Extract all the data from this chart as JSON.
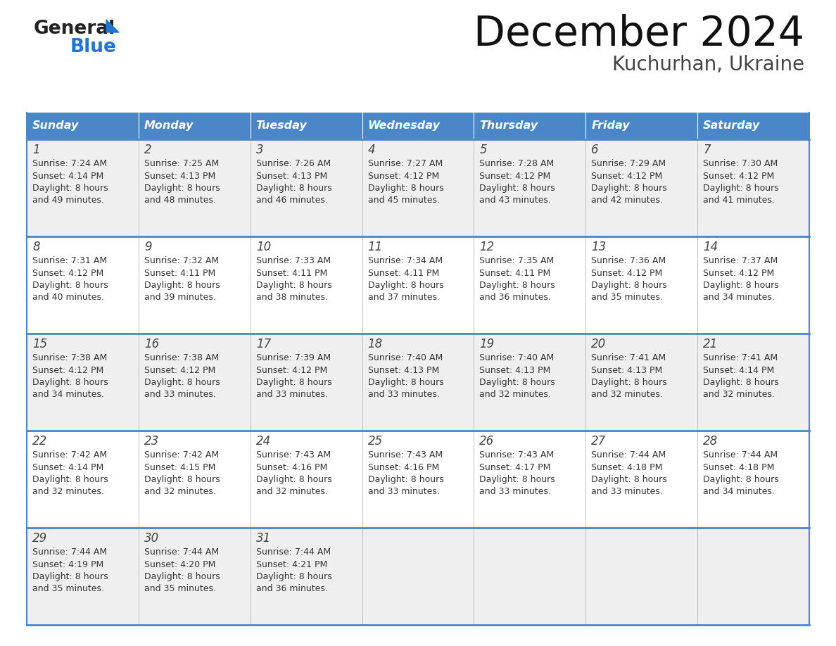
{
  "title": "December 2024",
  "subtitle": "Kuchurhan, Ukraine",
  "days_header": [
    "Sunday",
    "Monday",
    "Tuesday",
    "Wednesday",
    "Thursday",
    "Friday",
    "Saturday"
  ],
  "header_bg": "#4a86c8",
  "header_text_color": "#FFFFFF",
  "cell_bg_odd": "#EFEFEF",
  "cell_bg_even": "#FFFFFF",
  "cell_text_color": "#333333",
  "day_number_color": "#444444",
  "border_color": "#4a86c8",
  "grid_color": "#aaaaaa",
  "weeks": [
    [
      {
        "day": 1,
        "sunrise": "7:24 AM",
        "sunset": "4:14 PM",
        "daylight": "8 hours",
        "daylight2": "and 49 minutes."
      },
      {
        "day": 2,
        "sunrise": "7:25 AM",
        "sunset": "4:13 PM",
        "daylight": "8 hours",
        "daylight2": "and 48 minutes."
      },
      {
        "day": 3,
        "sunrise": "7:26 AM",
        "sunset": "4:13 PM",
        "daylight": "8 hours",
        "daylight2": "and 46 minutes."
      },
      {
        "day": 4,
        "sunrise": "7:27 AM",
        "sunset": "4:12 PM",
        "daylight": "8 hours",
        "daylight2": "and 45 minutes."
      },
      {
        "day": 5,
        "sunrise": "7:28 AM",
        "sunset": "4:12 PM",
        "daylight": "8 hours",
        "daylight2": "and 43 minutes."
      },
      {
        "day": 6,
        "sunrise": "7:29 AM",
        "sunset": "4:12 PM",
        "daylight": "8 hours",
        "daylight2": "and 42 minutes."
      },
      {
        "day": 7,
        "sunrise": "7:30 AM",
        "sunset": "4:12 PM",
        "daylight": "8 hours",
        "daylight2": "and 41 minutes."
      }
    ],
    [
      {
        "day": 8,
        "sunrise": "7:31 AM",
        "sunset": "4:12 PM",
        "daylight": "8 hours",
        "daylight2": "and 40 minutes."
      },
      {
        "day": 9,
        "sunrise": "7:32 AM",
        "sunset": "4:11 PM",
        "daylight": "8 hours",
        "daylight2": "and 39 minutes."
      },
      {
        "day": 10,
        "sunrise": "7:33 AM",
        "sunset": "4:11 PM",
        "daylight": "8 hours",
        "daylight2": "and 38 minutes."
      },
      {
        "day": 11,
        "sunrise": "7:34 AM",
        "sunset": "4:11 PM",
        "daylight": "8 hours",
        "daylight2": "and 37 minutes."
      },
      {
        "day": 12,
        "sunrise": "7:35 AM",
        "sunset": "4:11 PM",
        "daylight": "8 hours",
        "daylight2": "and 36 minutes."
      },
      {
        "day": 13,
        "sunrise": "7:36 AM",
        "sunset": "4:12 PM",
        "daylight": "8 hours",
        "daylight2": "and 35 minutes."
      },
      {
        "day": 14,
        "sunrise": "7:37 AM",
        "sunset": "4:12 PM",
        "daylight": "8 hours",
        "daylight2": "and 34 minutes."
      }
    ],
    [
      {
        "day": 15,
        "sunrise": "7:38 AM",
        "sunset": "4:12 PM",
        "daylight": "8 hours",
        "daylight2": "and 34 minutes."
      },
      {
        "day": 16,
        "sunrise": "7:38 AM",
        "sunset": "4:12 PM",
        "daylight": "8 hours",
        "daylight2": "and 33 minutes."
      },
      {
        "day": 17,
        "sunrise": "7:39 AM",
        "sunset": "4:12 PM",
        "daylight": "8 hours",
        "daylight2": "and 33 minutes."
      },
      {
        "day": 18,
        "sunrise": "7:40 AM",
        "sunset": "4:13 PM",
        "daylight": "8 hours",
        "daylight2": "and 33 minutes."
      },
      {
        "day": 19,
        "sunrise": "7:40 AM",
        "sunset": "4:13 PM",
        "daylight": "8 hours",
        "daylight2": "and 32 minutes."
      },
      {
        "day": 20,
        "sunrise": "7:41 AM",
        "sunset": "4:13 PM",
        "daylight": "8 hours",
        "daylight2": "and 32 minutes."
      },
      {
        "day": 21,
        "sunrise": "7:41 AM",
        "sunset": "4:14 PM",
        "daylight": "8 hours",
        "daylight2": "and 32 minutes."
      }
    ],
    [
      {
        "day": 22,
        "sunrise": "7:42 AM",
        "sunset": "4:14 PM",
        "daylight": "8 hours",
        "daylight2": "and 32 minutes."
      },
      {
        "day": 23,
        "sunrise": "7:42 AM",
        "sunset": "4:15 PM",
        "daylight": "8 hours",
        "daylight2": "and 32 minutes."
      },
      {
        "day": 24,
        "sunrise": "7:43 AM",
        "sunset": "4:16 PM",
        "daylight": "8 hours",
        "daylight2": "and 32 minutes."
      },
      {
        "day": 25,
        "sunrise": "7:43 AM",
        "sunset": "4:16 PM",
        "daylight": "8 hours",
        "daylight2": "and 33 minutes."
      },
      {
        "day": 26,
        "sunrise": "7:43 AM",
        "sunset": "4:17 PM",
        "daylight": "8 hours",
        "daylight2": "and 33 minutes."
      },
      {
        "day": 27,
        "sunrise": "7:44 AM",
        "sunset": "4:18 PM",
        "daylight": "8 hours",
        "daylight2": "and 33 minutes."
      },
      {
        "day": 28,
        "sunrise": "7:44 AM",
        "sunset": "4:18 PM",
        "daylight": "8 hours",
        "daylight2": "and 34 minutes."
      }
    ],
    [
      {
        "day": 29,
        "sunrise": "7:44 AM",
        "sunset": "4:19 PM",
        "daylight": "8 hours",
        "daylight2": "and 35 minutes."
      },
      {
        "day": 30,
        "sunrise": "7:44 AM",
        "sunset": "4:20 PM",
        "daylight": "8 hours",
        "daylight2": "and 35 minutes."
      },
      {
        "day": 31,
        "sunrise": "7:44 AM",
        "sunset": "4:21 PM",
        "daylight": "8 hours",
        "daylight2": "and 36 minutes."
      },
      null,
      null,
      null,
      null
    ]
  ]
}
